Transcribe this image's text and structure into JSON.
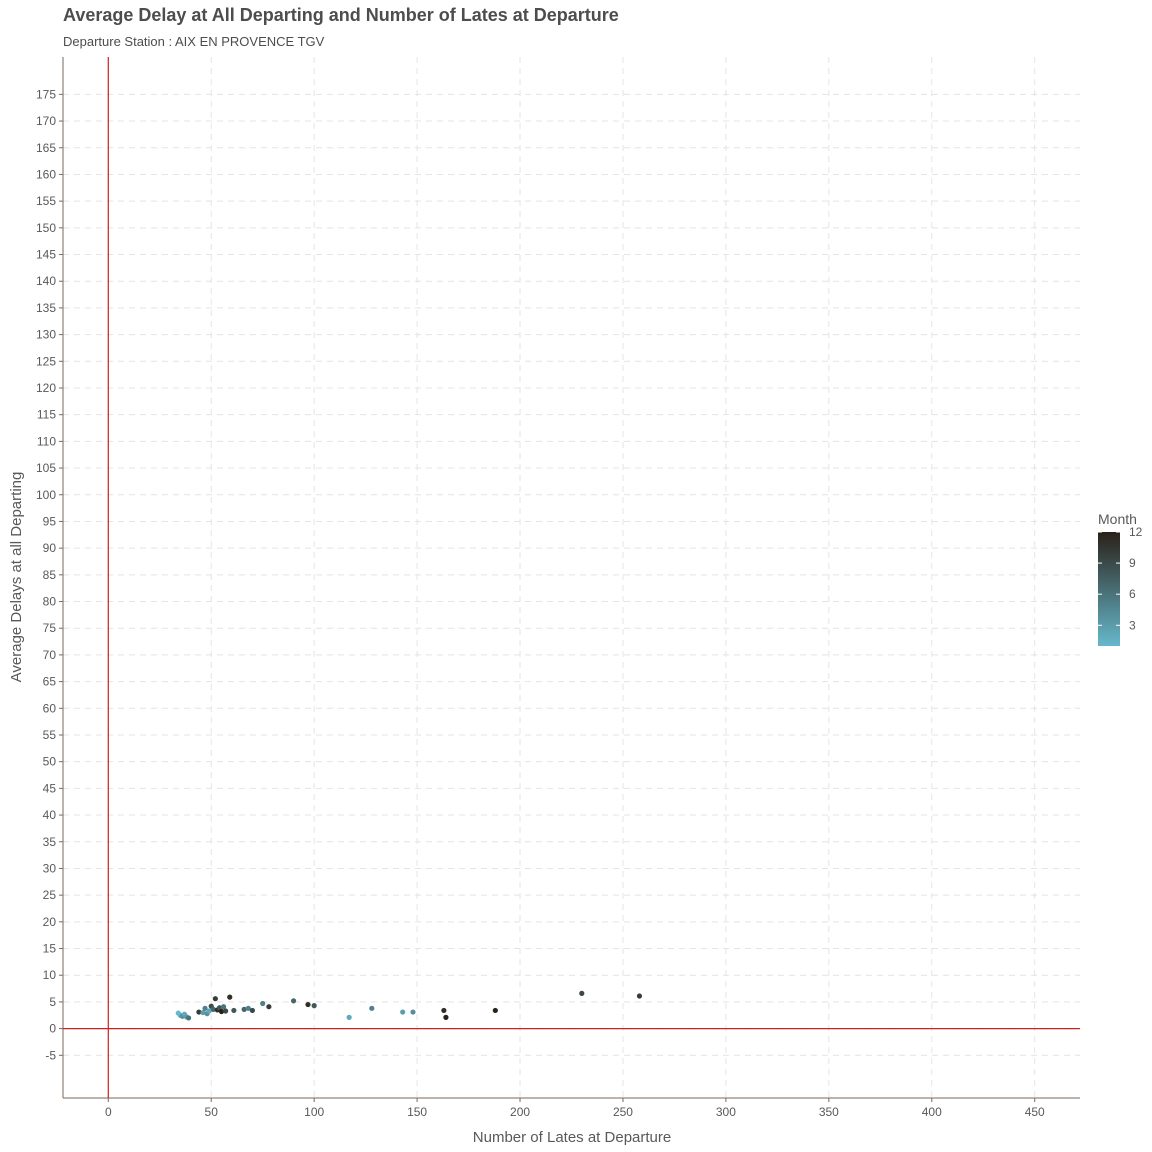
{
  "chart_data": {
    "type": "scatter",
    "title": "Average Delay at All Departing and Number of Lates at Departure",
    "subtitle": "Departure Station : AIX EN PROVENCE TGV",
    "xlabel": "Number of Lates at Departure",
    "ylabel": "Average Delays at all Departing",
    "xlim": [
      -22,
      472
    ],
    "ylim": [
      -13,
      182
    ],
    "x_ticks": [
      "0",
      "50",
      "100",
      "150",
      "200",
      "250",
      "300",
      "350",
      "400",
      "450"
    ],
    "x_tick_values": [
      0,
      50,
      100,
      150,
      200,
      250,
      300,
      350,
      400,
      450
    ],
    "y_ticks": [
      "-5",
      "0",
      "5",
      "10",
      "15",
      "20",
      "25",
      "30",
      "35",
      "40",
      "45",
      "50",
      "55",
      "60",
      "65",
      "70",
      "75",
      "80",
      "85",
      "90",
      "95",
      "100",
      "105",
      "110",
      "115",
      "120",
      "125",
      "130",
      "135",
      "140",
      "145",
      "150",
      "155",
      "160",
      "165",
      "170",
      "175"
    ],
    "y_tick_values": [
      -5,
      0,
      5,
      10,
      15,
      20,
      25,
      30,
      35,
      40,
      45,
      50,
      55,
      60,
      65,
      70,
      75,
      80,
      85,
      90,
      95,
      100,
      105,
      110,
      115,
      120,
      125,
      130,
      135,
      140,
      145,
      150,
      155,
      160,
      165,
      170,
      175
    ],
    "grid": true,
    "grid_style": "dashed",
    "reference_lines": {
      "x": 0,
      "y": 0,
      "color": "#d11f1f"
    },
    "legend": {
      "title": "Month",
      "position": "right",
      "type": "colorbar",
      "labels": [
        "12",
        "9",
        "6",
        "3"
      ],
      "label_values": [
        12,
        9,
        6,
        3
      ],
      "range": [
        1,
        12
      ],
      "color_low": "#66b8cc",
      "color_high": "#2a2118"
    },
    "points": [
      {
        "x": 35,
        "y": 2.5,
        "month": 2
      },
      {
        "x": 34,
        "y": 2.9,
        "month": 1
      },
      {
        "x": 36,
        "y": 2.3,
        "month": 4
      },
      {
        "x": 37,
        "y": 2.7,
        "month": 2
      },
      {
        "x": 38,
        "y": 2.2,
        "month": 3
      },
      {
        "x": 39,
        "y": 2.0,
        "month": 6
      },
      {
        "x": 44,
        "y": 3.1,
        "month": 10
      },
      {
        "x": 46,
        "y": 3.0,
        "month": 3
      },
      {
        "x": 47,
        "y": 3.8,
        "month": 5
      },
      {
        "x": 48,
        "y": 2.8,
        "month": 4
      },
      {
        "x": 49,
        "y": 3.3,
        "month": 2
      },
      {
        "x": 50,
        "y": 4.2,
        "month": 9
      },
      {
        "x": 51,
        "y": 3.6,
        "month": 7
      },
      {
        "x": 52,
        "y": 5.6,
        "month": 10
      },
      {
        "x": 53,
        "y": 3.5,
        "month": 11
      },
      {
        "x": 54,
        "y": 3.9,
        "month": 8
      },
      {
        "x": 55,
        "y": 3.2,
        "month": 12
      },
      {
        "x": 56,
        "y": 4.1,
        "month": 6
      },
      {
        "x": 57,
        "y": 3.3,
        "month": 9
      },
      {
        "x": 59,
        "y": 5.9,
        "month": 11
      },
      {
        "x": 61,
        "y": 3.4,
        "month": 8
      },
      {
        "x": 66,
        "y": 3.6,
        "month": 7
      },
      {
        "x": 68,
        "y": 3.8,
        "month": 5
      },
      {
        "x": 70,
        "y": 3.4,
        "month": 9
      },
      {
        "x": 75,
        "y": 4.7,
        "month": 5
      },
      {
        "x": 78,
        "y": 4.1,
        "month": 10
      },
      {
        "x": 90,
        "y": 5.2,
        "month": 7
      },
      {
        "x": 97,
        "y": 4.5,
        "month": 11
      },
      {
        "x": 100,
        "y": 4.3,
        "month": 8
      },
      {
        "x": 117,
        "y": 2.1,
        "month": 2
      },
      {
        "x": 128,
        "y": 3.8,
        "month": 5
      },
      {
        "x": 143,
        "y": 3.1,
        "month": 3
      },
      {
        "x": 148,
        "y": 3.1,
        "month": 4
      },
      {
        "x": 163,
        "y": 3.4,
        "month": 11
      },
      {
        "x": 164,
        "y": 2.1,
        "month": 12
      },
      {
        "x": 188,
        "y": 3.4,
        "month": 12
      },
      {
        "x": 230,
        "y": 6.6,
        "month": 9
      },
      {
        "x": 258,
        "y": 6.1,
        "month": 10
      }
    ]
  }
}
